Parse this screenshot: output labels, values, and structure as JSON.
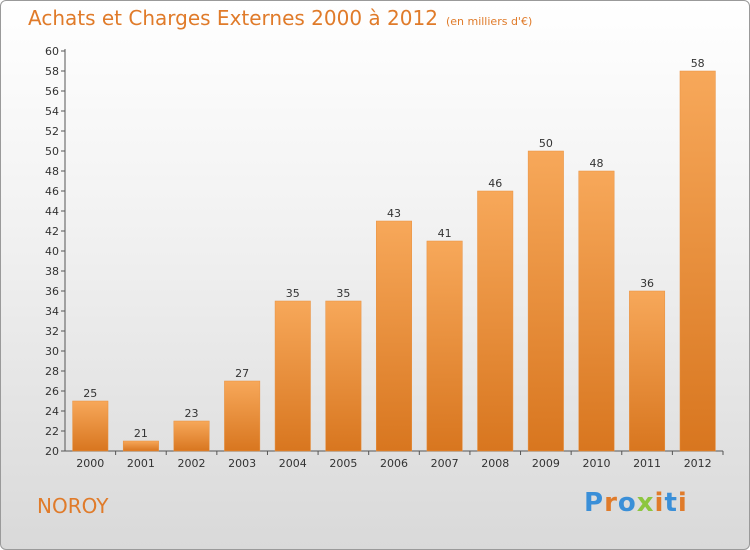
{
  "header": {
    "title": "Achats et Charges Externes 2000 à 2012",
    "unit": "(en milliers d'€)"
  },
  "footer": {
    "town": "NOROY",
    "logo": "Proxiti"
  },
  "colors": {
    "accent": "#e07b2a",
    "bar_light": "#f7a85a",
    "bar_dark": "#d8761f",
    "logo": [
      "#3a8fd8",
      "#e07b2a",
      "#3a8fd8",
      "#8dc63f",
      "#e07b2a",
      "#3a8fd8",
      "#e07b2a"
    ]
  },
  "chart_data": {
    "type": "bar",
    "title": "Achats et Charges Externes 2000 à 2012",
    "subtitle": "(en milliers d'€)",
    "categories": [
      "2000",
      "2001",
      "2002",
      "2003",
      "2004",
      "2005",
      "2006",
      "2007",
      "2008",
      "2009",
      "2010",
      "2011",
      "2012"
    ],
    "values": [
      25,
      21,
      23,
      27,
      35,
      35,
      43,
      41,
      46,
      50,
      48,
      36,
      58
    ],
    "ylim": [
      20,
      60
    ],
    "yticks": [
      20,
      22,
      24,
      26,
      28,
      30,
      32,
      34,
      36,
      38,
      40,
      42,
      44,
      46,
      48,
      50,
      52,
      54,
      56,
      58,
      60
    ],
    "grid": false,
    "legend": "none"
  }
}
